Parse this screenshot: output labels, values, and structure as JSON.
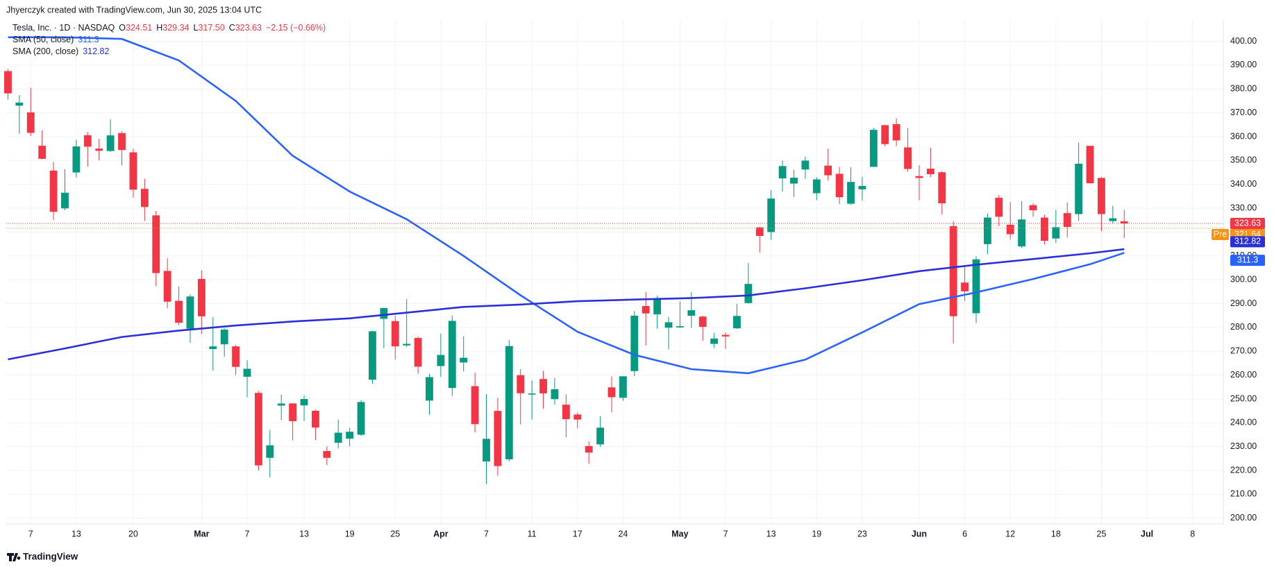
{
  "header": {
    "credit": "Jhyerczyk created with TradingView.com, Jun 30, 2025 13:04 UTC"
  },
  "chart_data": {
    "type": "candlestick",
    "symbol": "Tesla, Inc. · 1D · NASDAQ",
    "ohlc_legend": [
      {
        "key": "O",
        "value": "324.51"
      },
      {
        "key": "H",
        "value": "329.34"
      },
      {
        "key": "L",
        "value": "317.50"
      },
      {
        "key": "C",
        "value": "323.63"
      }
    ],
    "change": "−2.15 (−0.66%)",
    "up_color": "#089981",
    "down_color": "#f23645",
    "open": [
      387.51,
      373.03,
      370.19,
      356.21,
      345.8,
      329.94,
      345,
      360.62,
      355.01,
      354,
      361.51,
      353.44,
      338.14,
      327.02,
      303.71,
      291.16,
      279.5,
      300.34,
      270.93,
      272.92,
      272.06,
      259.32,
      252.54,
      225.31,
      247.22,
      248.13,
      247.31,
      245.06,
      228.16,
      231.61,
      233.34,
      234.99,
      258.08,
      283.6,
      282.66,
      272.48,
      275.58,
      249.31,
      263.8,
      254.6,
      265.29,
      255.38,
      223.78,
      245,
      224.69,
      260,
      251.84,
      258.36,
      249.91,
      247.61,
      243.47,
      230.26,
      230.96,
      254.86,
      250.5,
      261.69,
      288.98,
      285.5,
      279.9,
      280.01,
      284.9,
      284.57,
      273.1,
      276.88,
      279.63,
      290.21,
      321.99,
      320,
      342.5,
      340.34,
      346.24,
      336.3,
      347.87,
      344.43,
      331.9,
      337.92,
      347.35,
      364.84,
      365.29,
      355.52,
      343.5,
      346.6,
      345.1,
      322.49,
      298.83,
      285.96,
      314.94,
      334.4,
      323.08,
      313.97,
      331.29,
      326.09,
      317.31,
      327.95,
      327.54,
      356.17,
      342.7,
      324.61,
      324.51
    ],
    "high": [
      388.39,
      377.44,
      380.54,
      362.7,
      349.37,
      346.4,
      358.69,
      362,
      359.1,
      367.34,
      362.3,
      354.98,
      342.4,
      328.89,
      309,
      297.23,
      293.88,
      303.94,
      284.35,
      279.55,
      272.65,
      266.25,
      253.37,
      237.06,
      251.84,
      248.29,
      251.58,
      245.4,
      230.1,
      241.41,
      238,
      249.52,
      278.64,
      288.2,
      284.9,
      291.85,
      276.1,
      260.56,
      277.45,
      284.99,
      276.3,
      261,
      252,
      250.44,
      274.69,
      262.49,
      257.74,
      261.8,
      258.75,
      251.97,
      244.34,
      232.21,
      242.79,
      259.45,
      259.54,
      286.85,
      294.86,
      293.32,
      284.45,
      290.86,
      294.78,
      284.85,
      277.73,
      277.92,
      289.8,
      307.04,
      322.21,
      337.59,
      350,
      346.14,
      351.62,
      343,
      354.99,
      347.35,
      347.27,
      343.18,
      363.79,
      365,
      367.71,
      363.68,
      348.02,
      355.4,
      345.6,
      324.55,
      305.5,
      309.83,
      327.83,
      335.5,
      332.56,
      332.99,
      332.05,
      327.26,
      329.32,
      332.36,
      357.54,
      356.26,
      343,
      331.05,
      329.34
    ],
    "low": [
      375.53,
      361.2,
      360.34,
      350.51,
      325.1,
      329.12,
      342.85,
      347.5,
      350.02,
      353.67,
      348,
      334.42,
      324.7,
      297.25,
      288.04,
      280.88,
      273.6,
      277.3,
      261.84,
      267.71,
      260.02,
      250.73,
      220,
      217.02,
      241.1,
      232.6,
      240.73,
      232.8,
      222.28,
      229.2,
      230.05,
      234.55,
      256.33,
      271.28,
      266.51,
      271.82,
      260.57,
      243.36,
      259.25,
      251.27,
      261.51,
      236,
      214.25,
      217.8,
      223.88,
      239.33,
      241.36,
      245.93,
      247.54,
      233.89,
      237.68,
      222.79,
      229.85,
      244.43,
      249.2,
      259.63,
      272.42,
      279.47,
      270.78,
      279.81,
      279.81,
      274.4,
      271.35,
      271,
      279.41,
      290,
      311.5,
      316.8,
      337,
      334.72,
      342.33,
      333.37,
      341.63,
      331.84,
      331.39,
      333.21,
      347.32,
      355.91,
      356,
      345.29,
      333.33,
      343.04,
      327.33,
      273.21,
      291.14,
      281.85,
      310.67,
      322.5,
      316.86,
      313.3,
      326.41,
      314.74,
      315.45,
      317.78,
      324.8,
      340.44,
      320.4,
      323.61,
      317.5
    ],
    "close": [
      378.17,
      374.32,
      361.62,
      350.73,
      328.5,
      336.51,
      355.94,
      355.84,
      354.11,
      360.56,
      354.4,
      337.8,
      330.53,
      302.8,
      290.8,
      281.95,
      292.98,
      284.65,
      272.04,
      279.1,
      263.45,
      262.67,
      222.15,
      230.58,
      248.09,
      240.68,
      249.98,
      238.01,
      225.31,
      235.86,
      236.26,
      248.71,
      278.39,
      288.14,
      272.06,
      273.13,
      263.55,
      259.16,
      268.46,
      282.76,
      267.28,
      239.43,
      233.29,
      221.86,
      272.2,
      252.4,
      252.31,
      252.35,
      254.11,
      241.55,
      241.37,
      227.5,
      237.97,
      250.74,
      259.51,
      284.95,
      285.88,
      292.03,
      282.16,
      280.52,
      287.21,
      280.26,
      275.35,
      276.22,
      284.82,
      298.26,
      318.38,
      334.07,
      347.68,
      342.82,
      349.98,
      342.09,
      343.82,
      334.62,
      341.04,
      339.34,
      362.89,
      356.9,
      358.43,
      346.46,
      342.69,
      344.27,
      332.05,
      284.7,
      295.14,
      308.58,
      326.09,
      326.43,
      319.11,
      325.31,
      329.13,
      316.35,
      322.05,
      322.16,
      348.68,
      340.47,
      327.55,
      325.78,
      323.63
    ],
    "series": [
      {
        "name": "SMA (50, close)",
        "legend_value": "311.3",
        "color": "#2962ff",
        "x": [
          0,
          5,
          10,
          15,
          20,
          25,
          30,
          35,
          40,
          45,
          50,
          55,
          60,
          65,
          70,
          75,
          80,
          85,
          90,
          95,
          98
        ],
        "values": [
          401.7,
          401.7,
          401,
          392,
          375,
          352,
          337,
          325.4,
          310,
          293.5,
          278.2,
          268.5,
          262.5,
          260.8,
          266.5,
          277.9,
          289.8,
          294.7,
          300.3,
          306.5,
          311.3
        ]
      },
      {
        "name": "SMA (200, close)",
        "legend_value": "312.82",
        "color": "#2b2fd9",
        "x": [
          0,
          5,
          10,
          15,
          20,
          25,
          30,
          35,
          40,
          45,
          50,
          55,
          60,
          65,
          70,
          75,
          80,
          85,
          90,
          95,
          98
        ],
        "values": [
          266.6,
          271.2,
          276,
          278.7,
          280.8,
          282.5,
          283.8,
          286.2,
          288.6,
          289.6,
          291,
          291.7,
          292.3,
          293.4,
          296.4,
          299.8,
          303.6,
          306.3,
          308.7,
          311.1,
          312.82
        ]
      }
    ],
    "last_price": 323.63,
    "pre_label": "Pre",
    "pre_price": 321.64,
    "pre_color": "#f7931a",
    "xlim": [
      -0.15,
      106.7
    ],
    "xticks": [
      {
        "value": 2,
        "label": "7"
      },
      {
        "value": 6,
        "label": "13"
      },
      {
        "value": 11,
        "label": "20"
      },
      {
        "value": 17,
        "label": "Mar"
      },
      {
        "value": 21,
        "label": "7"
      },
      {
        "value": 26,
        "label": "13"
      },
      {
        "value": 30,
        "label": "19"
      },
      {
        "value": 34,
        "label": "25"
      },
      {
        "value": 38,
        "label": "Apr"
      },
      {
        "value": 42,
        "label": "7"
      },
      {
        "value": 46,
        "label": "11"
      },
      {
        "value": 50,
        "label": "17"
      },
      {
        "value": 54,
        "label": "24"
      },
      {
        "value": 59,
        "label": "May"
      },
      {
        "value": 63,
        "label": "7"
      },
      {
        "value": 67,
        "label": "13"
      },
      {
        "value": 71,
        "label": "19"
      },
      {
        "value": 75,
        "label": "23"
      },
      {
        "value": 80,
        "label": "Jun"
      },
      {
        "value": 84,
        "label": "6"
      },
      {
        "value": 88,
        "label": "12"
      },
      {
        "value": 92,
        "label": "18"
      },
      {
        "value": 96,
        "label": "25"
      },
      {
        "value": 100,
        "label": "Jul"
      },
      {
        "value": 104,
        "label": "8"
      }
    ],
    "ylim": [
      197.6,
      408.9
    ],
    "yticks": [
      {
        "value": 200,
        "label": "200.00"
      },
      {
        "value": 210,
        "label": "210.00"
      },
      {
        "value": 220,
        "label": "220.00"
      },
      {
        "value": 230,
        "label": "230.00"
      },
      {
        "value": 240,
        "label": "240.00"
      },
      {
        "value": 250,
        "label": "250.00"
      },
      {
        "value": 260,
        "label": "260.00"
      },
      {
        "value": 270,
        "label": "270.00"
      },
      {
        "value": 280,
        "label": "280.00"
      },
      {
        "value": 290,
        "label": "290.00"
      },
      {
        "value": 300,
        "label": "300.00"
      },
      {
        "value": 310,
        "label": "310.00"
      },
      {
        "value": 320,
        "label": "320.00"
      },
      {
        "value": 330,
        "label": "330.00"
      },
      {
        "value": 340,
        "label": "340.00"
      },
      {
        "value": 350,
        "label": "350.00"
      },
      {
        "value": 360,
        "label": "360.00"
      },
      {
        "value": 370,
        "label": "370.00"
      },
      {
        "value": 380,
        "label": "380.00"
      },
      {
        "value": 390,
        "label": "390.00"
      },
      {
        "value": 400,
        "label": "400.00"
      }
    ],
    "grid": true
  },
  "footer": {
    "brand": "TradingView"
  }
}
